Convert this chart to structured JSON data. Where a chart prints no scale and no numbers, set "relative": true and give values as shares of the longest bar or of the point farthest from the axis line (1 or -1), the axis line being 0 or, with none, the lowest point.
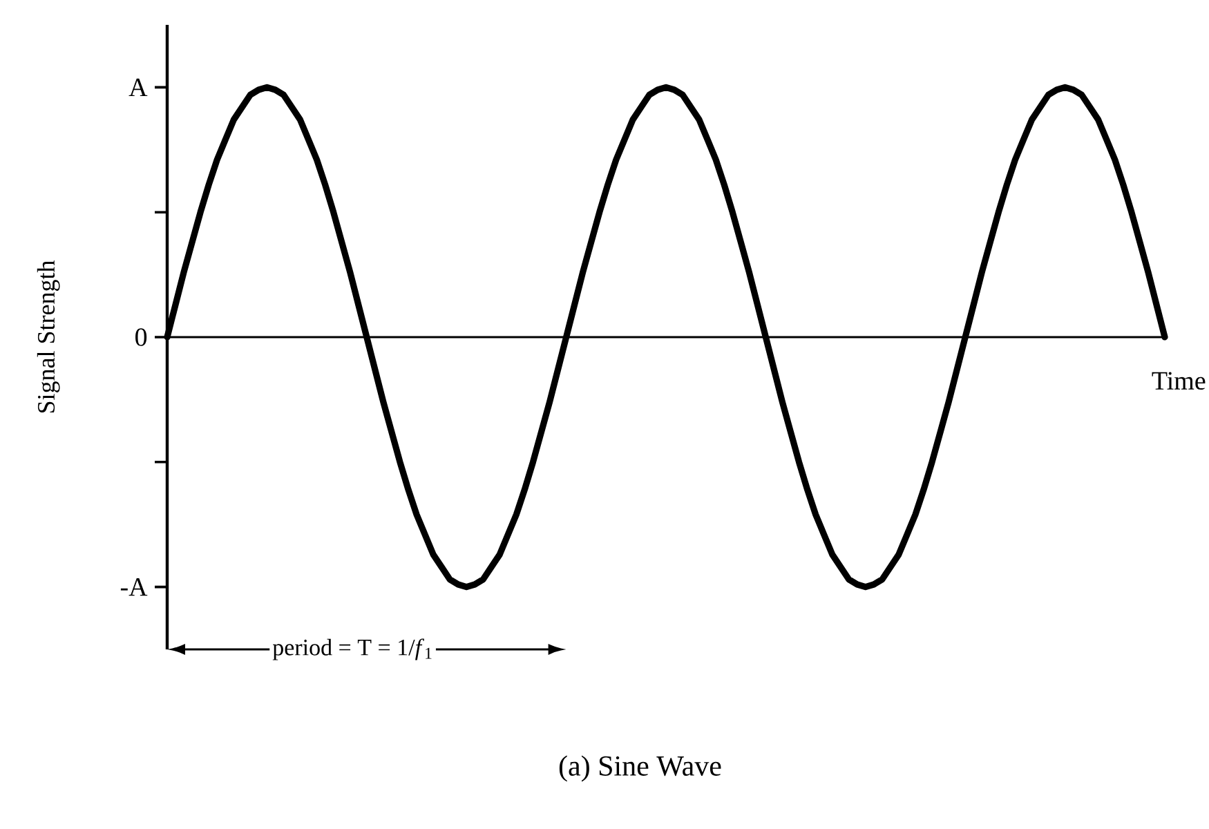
{
  "chart_data": {
    "type": "line",
    "title": "(a) Sine Wave",
    "xlabel": "Time",
    "ylabel": "Signal Strength",
    "annotations": [
      "period = T = 1/*f*$_{1}$",
      "A",
      "0",
      "-A"
    ],
    "categories": [
      null,
      null,
      null,
      null,
      null,
      null,
      null,
      null,
      null,
      null,
      null,
      null,
      null,
      null,
      null,
      null,
      null,
      null,
      null,
      null,
      null,
      null,
      null,
      null,
      null,
      null,
      null,
      null,
      null,
      null,
      null,
      null,
      null,
      null,
      null,
      null,
      null,
      null,
      null,
      null,
      null,
      null,
      null,
      null,
      null,
      null,
      null,
      null,
      null,
      null,
      null,
      null,
      null,
      null,
      null,
      null,
      null,
      null,
      null,
      null,
      null,
      null,
      null,
      null,
      null,
      null,
      null,
      null,
      null,
      null,
      null,
      null,
      null,
      null,
      null,
      null,
      null,
      null,
      null,
      null,
      null,
      null,
      null,
      null,
      null,
      null,
      null,
      null,
      null,
      null,
      null,
      null,
      null,
      null,
      null,
      null,
      null,
      null,
      null,
      null,
      null,
      null,
      null,
      null,
      null,
      null,
      null,
      null,
      null,
      null,
      null,
      null,
      null,
      null,
      null,
      null,
      null,
      null,
      null,
      null,
      null
    ],
    "values": [
      0,
      0.13,
      0.26,
      0.38,
      0.5,
      0.61,
      0.71,
      0.79,
      0.87,
      0.92,
      0.97,
      0.99,
      1,
      0.99,
      0.97,
      0.92,
      0.87,
      0.79,
      0.71,
      0.61,
      0.5,
      0.38,
      0.26,
      0.13,
      0,
      -0.13,
      -0.26,
      -0.38,
      -0.5,
      -0.61,
      -0.71,
      -0.79,
      -0.87,
      -0.92,
      -0.97,
      -0.99,
      -1,
      -0.99,
      -0.97,
      -0.92,
      -0.87,
      -0.79,
      -0.71,
      -0.61,
      -0.5,
      -0.38,
      -0.26,
      -0.13,
      0,
      0.13,
      0.26,
      0.38,
      0.5,
      0.61,
      0.71,
      0.79,
      0.87,
      0.92,
      0.97,
      0.99,
      1,
      0.99,
      0.97,
      0.92,
      0.87,
      0.79,
      0.71,
      0.61,
      0.5,
      0.38,
      0.26,
      0.13,
      0,
      -0.13,
      -0.26,
      -0.38,
      -0.5,
      -0.61,
      -0.71,
      -0.79,
      -0.87,
      -0.92,
      -0.97,
      -0.99,
      -1,
      -0.99,
      -0.97,
      -0.92,
      -0.87,
      -0.79,
      -0.71,
      -0.61,
      -0.5,
      -0.38,
      -0.26,
      -0.13,
      0,
      0.13,
      0.26,
      0.38,
      0.5,
      0.61,
      0.71,
      0.79,
      0.87,
      0.92,
      0.97,
      0.99,
      1,
      0.99,
      0.97,
      0.92,
      0.87,
      0.79,
      0.71,
      0.61,
      0.5,
      0.38,
      0.26,
      0.13,
      0
    ],
    "color": "#000000",
    "relative": true
  }
}
